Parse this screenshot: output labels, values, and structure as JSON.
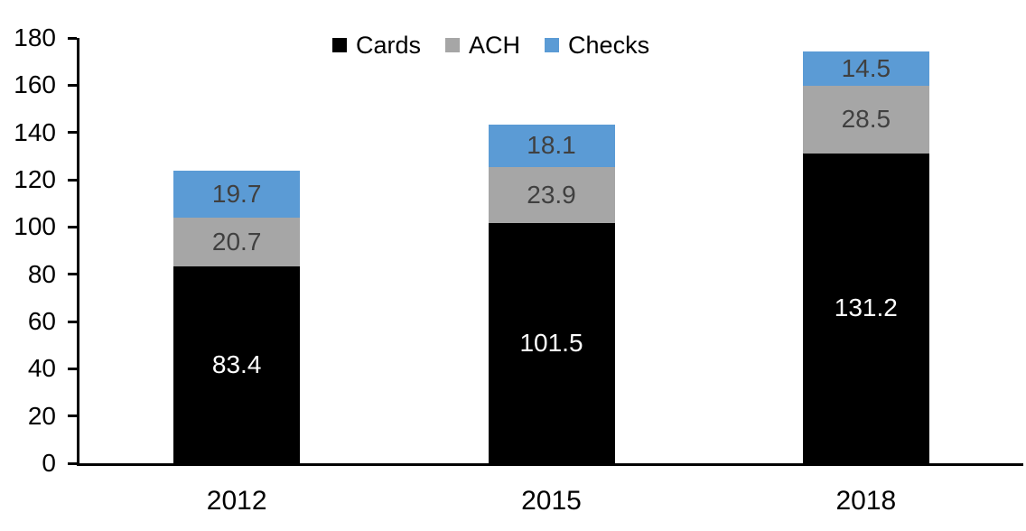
{
  "chart_data": {
    "type": "bar",
    "stacked": true,
    "title": "",
    "xlabel": "",
    "ylabel": "",
    "categories": [
      "2012",
      "2015",
      "2018"
    ],
    "series": [
      {
        "name": "Cards",
        "color": "#000000",
        "label_color": "#FFFFFF",
        "values": [
          83.4,
          101.5,
          131.2
        ]
      },
      {
        "name": "ACH",
        "color": "#A6A6A6",
        "label_color": "#404040",
        "values": [
          20.7,
          23.9,
          28.5
        ]
      },
      {
        "name": "Checks",
        "color": "#5B9BD5",
        "label_color": "#404040",
        "values": [
          19.7,
          18.1,
          14.5
        ]
      }
    ],
    "ylim": [
      0,
      180
    ],
    "ytick_step": 20,
    "ytick_labels": [
      "0",
      "20",
      "40",
      "60",
      "80",
      "100",
      "120",
      "140",
      "160",
      "180"
    ],
    "legend_position": "top",
    "legend_entries": [
      "Cards",
      "ACH",
      "Checks"
    ],
    "grid": false,
    "axis_color": "#000000",
    "background_color": "#FFFFFF"
  }
}
